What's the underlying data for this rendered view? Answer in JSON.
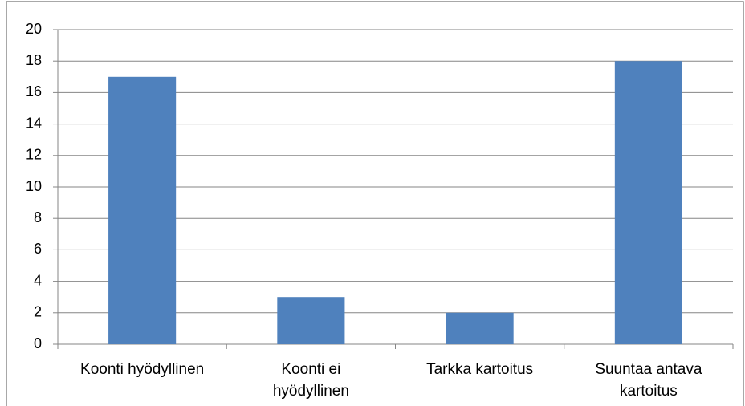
{
  "chart_data": {
    "type": "bar",
    "categories": [
      "Koonti hyödyllinen",
      "Koonti ei hyödyllinen",
      "Tarkka kartoitus",
      "Suuntaa antava kartoitus"
    ],
    "values": [
      17,
      3,
      2,
      18
    ],
    "color": "#4f81bd",
    "ylim": [
      0,
      20
    ],
    "yticks": [
      0,
      2,
      4,
      6,
      8,
      10,
      12,
      14,
      16,
      18,
      20
    ],
    "grid": true
  }
}
